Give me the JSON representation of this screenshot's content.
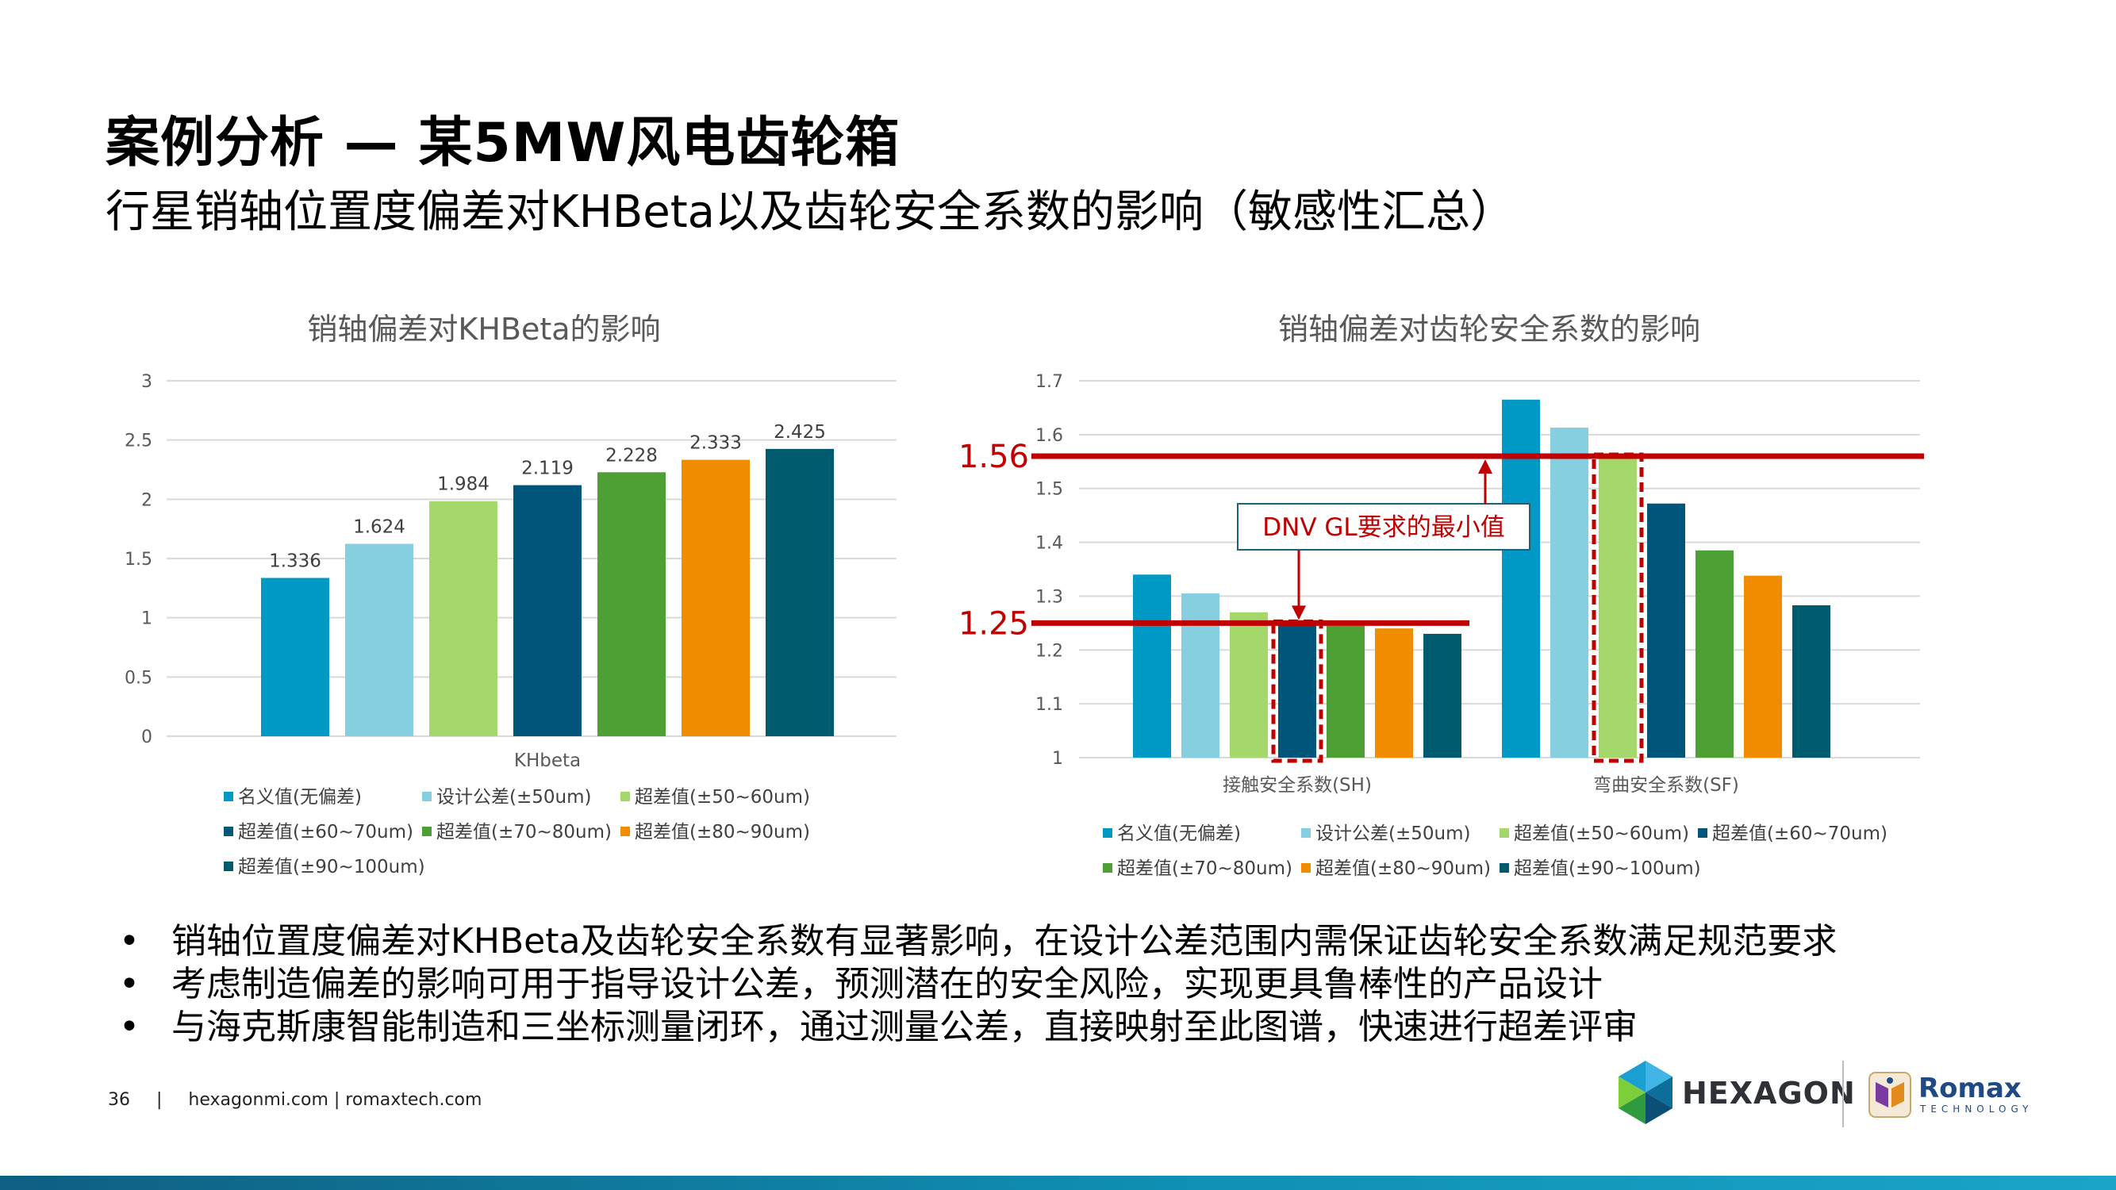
{
  "header": {
    "title": "案例分析 — 某5MW风电齿轮箱",
    "subtitle": "行星销轴位置度偏差对KHBeta以及齿轮安全系数的影响（敏感性汇总）"
  },
  "colors": {
    "series": [
      "#0099c5",
      "#86cfe0",
      "#a5d86a",
      "#00557a",
      "#4ea035",
      "#f08c00",
      "#005a6e"
    ],
    "reference_line": "#c00000"
  },
  "legend_labels": [
    "名义值(无偏差)",
    "设计公差(±50um)",
    "超差值(±50~60um)",
    "超差值(±60~70um)",
    "超差值(±70~80um)",
    "超差值(±80~90um)",
    "超差值(±90~100um)"
  ],
  "chart_data": [
    {
      "type": "bar",
      "title": "销轴偏差对KHBeta的影响",
      "categories": [
        "KHbeta"
      ],
      "ylim": [
        0,
        3
      ],
      "yticks": [
        "0",
        "0.5",
        "1",
        "1.5",
        "2",
        "2.5",
        "3"
      ],
      "grid": true,
      "legend_position": "bottom",
      "series": [
        {
          "name": "名义值(无偏差)",
          "values": [
            1.336
          ]
        },
        {
          "name": "设计公差(±50um)",
          "values": [
            1.624
          ]
        },
        {
          "name": "超差值(±50~60um)",
          "values": [
            1.984
          ]
        },
        {
          "name": "超差值(±60~70um)",
          "values": [
            2.119
          ]
        },
        {
          "name": "超差值(±70~80um)",
          "values": [
            2.228
          ]
        },
        {
          "name": "超差值(±80~90um)",
          "values": [
            2.333
          ]
        },
        {
          "name": "超差值(±90~100um)",
          "values": [
            2.425
          ]
        }
      ],
      "data_labels": [
        "1.336",
        "1.624",
        "1.984",
        "2.119",
        "2.228",
        "2.333",
        "2.425"
      ]
    },
    {
      "type": "bar",
      "title": "销轴偏差对齿轮安全系数的影响",
      "categories": [
        "接触安全系数(SH)",
        "弯曲安全系数(SF)"
      ],
      "ylim": [
        1,
        1.7
      ],
      "yticks": [
        "1",
        "1.1",
        "1.2",
        "1.3",
        "1.4",
        "1.5",
        "1.6",
        "1.7"
      ],
      "grid": true,
      "legend_position": "bottom",
      "series": [
        {
          "name": "名义值(无偏差)",
          "values": [
            1.34,
            1.665
          ]
        },
        {
          "name": "设计公差(±50um)",
          "values": [
            1.305,
            1.613
          ]
        },
        {
          "name": "超差值(±50~60um)",
          "values": [
            1.27,
            1.555
          ]
        },
        {
          "name": "超差值(±60~70um)",
          "values": [
            1.25,
            1.472
          ]
        },
        {
          "name": "超差值(±70~80um)",
          "values": [
            1.245,
            1.385
          ]
        },
        {
          "name": "超差值(±80~90um)",
          "values": [
            1.24,
            1.338
          ]
        },
        {
          "name": "超差值(±90~100um)",
          "values": [
            1.23,
            1.283
          ]
        }
      ],
      "reference_lines": [
        {
          "value": 1.56,
          "label": "1.56"
        },
        {
          "value": 1.25,
          "label": "1.25"
        }
      ],
      "annotation": "DNV GL要求的最小值"
    }
  ],
  "bullets": [
    "销轴位置度偏差对KHBeta及齿轮安全系数有显著影响，在设计公差范围内需保证齿轮安全系数满足规范要求",
    "考虑制造偏差的影响可用于指导设计公差，预测潜在的安全风险，实现更具鲁棒性的产品设计",
    "与海克斯康智能制造和三坐标测量闭环，通过测量公差，直接映射至此图谱，快速进行超差评审"
  ],
  "bullet_marker": "•",
  "footer": {
    "page_number": "36",
    "separator": "|",
    "links": "hexagonmi.com | romaxtech.com"
  },
  "logos": {
    "hexagon": "HEXAGON",
    "romax": "Romax",
    "romax_sub": "TECHNOLOGY"
  }
}
